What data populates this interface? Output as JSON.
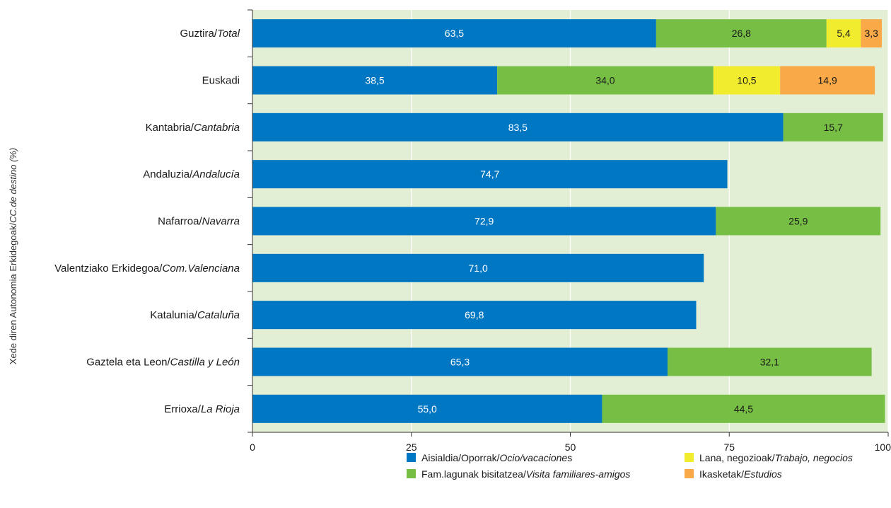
{
  "chart_data": {
    "type": "bar",
    "orientation": "horizontal",
    "stacked": true,
    "ylabel": {
      "plain": "Xede diren Autonomia Erkidegoak/",
      "italic": "CC.de destino (%)"
    },
    "xlim": [
      0,
      100
    ],
    "xticks": [
      0,
      25,
      50,
      75,
      100
    ],
    "grid": true,
    "categories": [
      {
        "plain": "Guztira/",
        "italic": "Total"
      },
      {
        "plain": "Euskadi",
        "italic": ""
      },
      {
        "plain": "Kantabria/",
        "italic": "Cantabria"
      },
      {
        "plain": "Andaluzia/",
        "italic": "Andalucía"
      },
      {
        "plain": "Nafarroa/",
        "italic": "Navarra"
      },
      {
        "plain": "Valentziako Erkidegoa/",
        "italic": "Com.Valenciana"
      },
      {
        "plain": "Katalunia/",
        "italic": "Cataluña"
      },
      {
        "plain": "Gaztela eta Leon/",
        "italic": "Castilla y León"
      },
      {
        "plain": "Errioxa/",
        "italic": "La Rioja"
      }
    ],
    "series": [
      {
        "name_plain": "Aisialdia/Oporrak/",
        "name_italic": "Ocio/vacacione",
        "name_suffix": "s",
        "color": "#0077c3",
        "values": [
          63.5,
          38.5,
          83.5,
          74.7,
          72.9,
          71.0,
          69.8,
          65.3,
          55.0
        ],
        "labels": [
          "63,5",
          "38,5",
          "83,5",
          "74,7",
          "72,9",
          "71,0",
          "69,8",
          "65,3",
          "55,0"
        ]
      },
      {
        "name_plain": "Fam.lagunak bisitatzea/",
        "name_italic": "Visita familiares-amigos",
        "name_suffix": "",
        "color": "#77bf44",
        "values": [
          26.8,
          34.0,
          15.7,
          null,
          25.9,
          null,
          null,
          32.1,
          44.5
        ],
        "labels": [
          "26,8",
          "34,0",
          "15,7",
          "",
          "25,9",
          "",
          "",
          "32,1",
          "44,5"
        ]
      },
      {
        "name_plain": "Lana, negozioak/",
        "name_italic": "Trabajo, negocios",
        "name_suffix": "",
        "color": "#f2ec2e",
        "values": [
          5.4,
          10.5,
          null,
          null,
          null,
          null,
          null,
          null,
          null
        ],
        "labels": [
          "5,4",
          "10,5",
          "",
          "",
          "",
          "",
          "",
          "",
          ""
        ]
      },
      {
        "name_plain": "Ikasketak/",
        "name_italic": "Estudios",
        "name_suffix": "",
        "color": "#f9a947",
        "values": [
          3.3,
          14.9,
          null,
          null,
          null,
          null,
          null,
          null,
          null
        ],
        "labels": [
          "3,3",
          "14,9",
          "",
          "",
          "",
          "",
          "",
          "",
          ""
        ]
      }
    ],
    "legend_position": "bottom",
    "colors": {
      "plot_background": "#e3efd5",
      "grid": "#ffffff",
      "axis": "#333333"
    }
  }
}
